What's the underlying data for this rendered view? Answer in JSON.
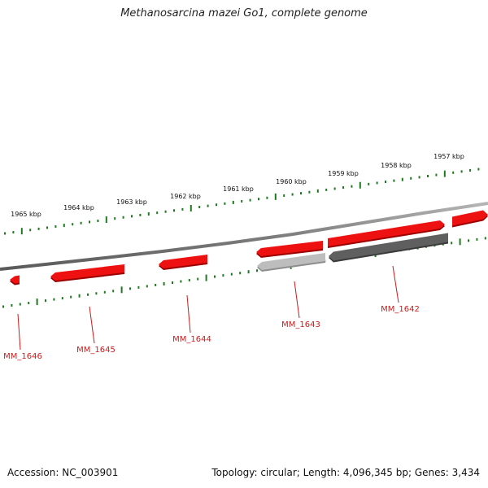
{
  "title": "Methanosarcina mazei Go1, complete genome",
  "footer": {
    "accession": "Accession: NC_003901",
    "topology": "Topology: circular",
    "length": "Length: 4,096,345 bp",
    "genes": "Genes: 3,434"
  },
  "colors": {
    "backbone": "#7d7d7d",
    "tick": "#1e7a1e",
    "gene_red": "#ee1111",
    "gene_red_dark": "#9a0000",
    "gene_grey_light": "#bdbdbd",
    "gene_grey_dark": "#5f5f5f",
    "label_red": "#cc1a1a"
  },
  "kbp_labels": [
    "1965 kbp",
    "1964 kbp",
    "1963 kbp",
    "1962 kbp",
    "1961 kbp",
    "1960 kbp",
    "1959 kbp",
    "1958 kbp",
    "1957 kbp"
  ],
  "genes": [
    {
      "name": "MM_1646",
      "strand": "reverse",
      "color": "red"
    },
    {
      "name": "MM_1645",
      "strand": "reverse",
      "color": "red"
    },
    {
      "name": "MM_1644",
      "strand": "reverse",
      "color": "red"
    },
    {
      "name": "MM_1643",
      "strand": "reverse",
      "color": "red"
    },
    {
      "name": "MM_1642",
      "strand": "forward",
      "color": "red"
    },
    {
      "name": "",
      "strand": "reverse",
      "color": "grey-light"
    },
    {
      "name": "",
      "strand": "reverse",
      "color": "grey-dark"
    },
    {
      "name": "",
      "strand": "forward",
      "color": "red"
    }
  ]
}
